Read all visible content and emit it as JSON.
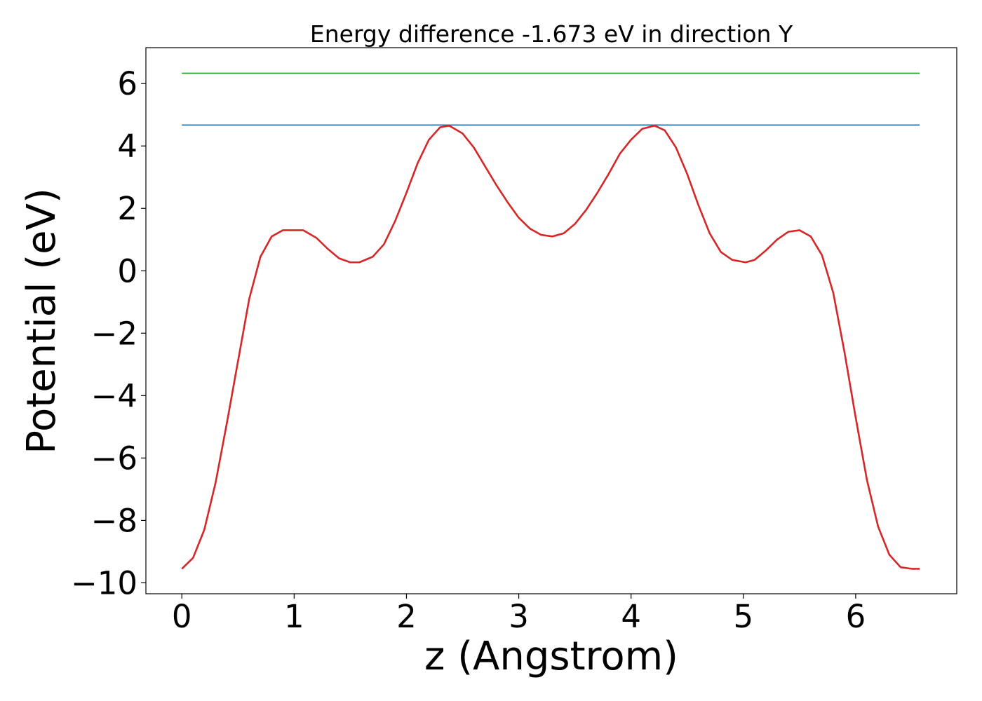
{
  "chart_data": {
    "type": "line",
    "title": "Energy difference -1.673 eV in direction Y",
    "xlabel": "z (Angstrom)",
    "ylabel": "Potential (eV)",
    "xlim": [
      -0.32,
      6.9
    ],
    "ylim": [
      -10.35,
      7.15
    ],
    "xticks": [
      0,
      1,
      2,
      3,
      4,
      5,
      6
    ],
    "yticks": [
      -10,
      -8,
      -6,
      -4,
      -2,
      0,
      2,
      4,
      6
    ],
    "xtick_labels": [
      "0",
      "1",
      "2",
      "3",
      "4",
      "5",
      "6"
    ],
    "ytick_labels": [
      "−10",
      "−8",
      "−6",
      "−4",
      "−2",
      "0",
      "2",
      "4",
      "6"
    ],
    "grid": false,
    "series": [
      {
        "color": "#d62728",
        "x": [
          0.0,
          0.1,
          0.2,
          0.3,
          0.4,
          0.5,
          0.6,
          0.7,
          0.8,
          0.9,
          1.0,
          1.08,
          1.2,
          1.3,
          1.4,
          1.5,
          1.58,
          1.7,
          1.8,
          1.9,
          2.0,
          2.1,
          2.2,
          2.3,
          2.38,
          2.5,
          2.6,
          2.7,
          2.8,
          2.9,
          3.0,
          3.1,
          3.2,
          3.3,
          3.4,
          3.5,
          3.6,
          3.7,
          3.8,
          3.9,
          4.0,
          4.1,
          4.21,
          4.3,
          4.4,
          4.5,
          4.6,
          4.7,
          4.8,
          4.9,
          5.02,
          5.1,
          5.2,
          5.3,
          5.4,
          5.5,
          5.6,
          5.7,
          5.8,
          5.9,
          6.0,
          6.1,
          6.2,
          6.3,
          6.4,
          6.5,
          6.57
        ],
        "y": [
          -9.55,
          -9.2,
          -8.3,
          -6.8,
          -4.9,
          -2.9,
          -0.9,
          0.45,
          1.1,
          1.3,
          1.3,
          1.3,
          1.05,
          0.7,
          0.4,
          0.27,
          0.27,
          0.45,
          0.85,
          1.6,
          2.5,
          3.45,
          4.2,
          4.6,
          4.65,
          4.4,
          3.95,
          3.35,
          2.75,
          2.2,
          1.7,
          1.35,
          1.15,
          1.1,
          1.2,
          1.5,
          1.95,
          2.5,
          3.1,
          3.75,
          4.2,
          4.55,
          4.65,
          4.5,
          3.95,
          3.1,
          2.1,
          1.2,
          0.6,
          0.35,
          0.27,
          0.35,
          0.65,
          1.0,
          1.25,
          1.3,
          1.1,
          0.5,
          -0.7,
          -2.6,
          -4.7,
          -6.7,
          -8.2,
          -9.1,
          -9.5,
          -9.55,
          -9.55
        ]
      },
      {
        "color": "#1f77b4",
        "x": [
          0.0,
          6.57
        ],
        "y": [
          4.67,
          4.67
        ]
      },
      {
        "color": "#2ca02c",
        "x": [
          0.0,
          6.57
        ],
        "y": [
          6.33,
          6.33
        ]
      }
    ]
  }
}
